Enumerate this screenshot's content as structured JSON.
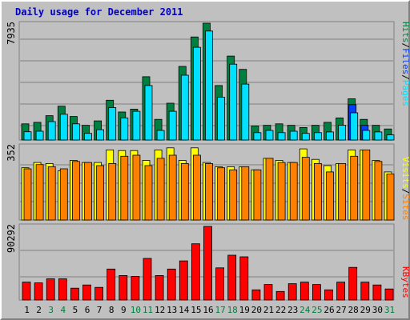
{
  "chart_data": {
    "type": "bar",
    "title": "Daily usage for December 2011",
    "categories": [
      "1",
      "2",
      "3",
      "4",
      "5",
      "6",
      "7",
      "8",
      "9",
      "10",
      "11",
      "12",
      "13",
      "14",
      "15",
      "16",
      "17",
      "18",
      "19",
      "20",
      "21",
      "22",
      "23",
      "24",
      "25",
      "26",
      "27",
      "28",
      "29",
      "30",
      "31"
    ],
    "weekend_days": [
      "3",
      "4",
      "10",
      "11",
      "17",
      "18",
      "24",
      "25",
      "31"
    ],
    "panels": [
      {
        "ymax_label": "7935",
        "ymax": 7935,
        "series": [
          {
            "name": "Hits",
            "color": "#008040",
            "values": [
              1100,
              1200,
              1650,
              2300,
              1600,
              1000,
              1300,
              2700,
              1900,
              2100,
              4300,
              1400,
              2500,
              5000,
              7000,
              7935,
              3700,
              5700,
              4800,
              950,
              1000,
              1100,
              1000,
              850,
              1000,
              1200,
              1500,
              2800,
              1400,
              1000,
              750
            ]
          },
          {
            "name": "Files",
            "color": "#0040ff",
            "values": [
              0,
              0,
              0,
              0,
              0,
              0,
              0,
              0,
              0,
              0,
              0,
              0,
              0,
              0,
              0,
              0,
              0,
              0,
              0,
              0,
              0,
              0,
              0,
              0,
              0,
              0,
              0,
              2400,
              1000,
              0,
              0
            ]
          },
          {
            "name": "Pages",
            "color": "#00e0ff",
            "values": [
              560,
              600,
              1250,
              1750,
              1100,
              450,
              700,
              2200,
              1500,
              1950,
              3700,
              650,
              1950,
              4400,
              6300,
              7400,
              2900,
              5150,
              3800,
              500,
              650,
              500,
              600,
              450,
              500,
              550,
              1000,
              1850,
              650,
              550,
              350
            ]
          }
        ]
      },
      {
        "ymax_label": "352",
        "ymax": 352,
        "series": [
          {
            "name": "Visits",
            "color": "#ffff00",
            "values": [
              250,
              275,
              270,
              235,
              285,
              275,
              275,
              335,
              332,
              332,
              285,
              335,
              345,
              285,
              345,
              275,
              255,
              255,
              255,
              240,
              295,
              285,
              275,
              340,
              290,
              260,
              270,
              335,
              335,
              285,
              230
            ]
          },
          {
            "name": "Sites",
            "color": "#ff8000",
            "values": [
              245,
              265,
              255,
              245,
              280,
              275,
              260,
              270,
              305,
              310,
              260,
              295,
              310,
              270,
              310,
              270,
              250,
              240,
              255,
              240,
              295,
              275,
              275,
              300,
              270,
              230,
              270,
              305,
              335,
              280,
              220
            ]
          }
        ]
      },
      {
        "ymax_label": "90292",
        "ymax": 90292,
        "series": [
          {
            "name": "KBytes",
            "color": "#ff0000",
            "values": [
              22000,
              21000,
              26000,
              26000,
              14500,
              18500,
              15500,
              38000,
              30000,
              29000,
              51000,
              30000,
              38000,
              48000,
              69000,
              90292,
              39500,
              55000,
              53000,
              12500,
              19000,
              10500,
              20000,
              22000,
              19000,
              12500,
              22000,
              40000,
              22000,
              18500,
              13500
            ]
          }
        ]
      }
    ]
  }
}
